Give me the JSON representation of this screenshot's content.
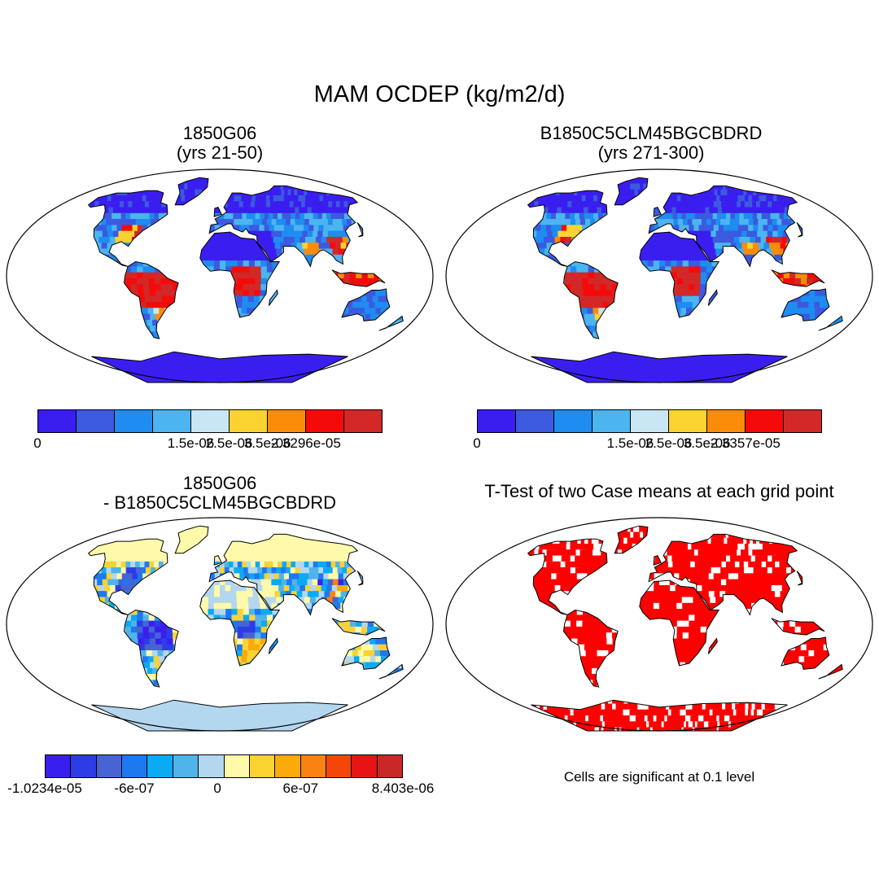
{
  "title": "MAM OCDEP (kg/m2/d)",
  "panels": [
    {
      "id": "case1",
      "title_line1": "1850G06",
      "title_line2": "(yrs 21-50)",
      "scheme": "seq",
      "variant": 0,
      "colorbar": {
        "colors": [
          "#3a1ef0",
          "#3b5ae0",
          "#1e8cf0",
          "#4cb4f0",
          "#c8e6f4",
          "#fad232",
          "#fa8c0a",
          "#f50a0a",
          "#d22828"
        ],
        "labels": [
          "0",
          "1.5e-06",
          "2.5e-06",
          "3.5e-06",
          "2.3296e-05"
        ]
      }
    },
    {
      "id": "case2",
      "title_line1": "B1850C5CLM45BGCBDRD",
      "title_line2": "(yrs 271-300)",
      "scheme": "seq",
      "variant": 1,
      "colorbar": {
        "colors": [
          "#3a1ef0",
          "#3b5ae0",
          "#1e8cf0",
          "#4cb4f0",
          "#c8e6f4",
          "#fad232",
          "#fa8c0a",
          "#f50a0a",
          "#d22828"
        ],
        "labels": [
          "0",
          "1.5e-06",
          "2.5e-06",
          "3.5e-06",
          "2.3357e-05"
        ]
      }
    },
    {
      "id": "diff",
      "title_line1": "1850G06",
      "title_line2": "- B1850C5CLM45BGCBDRD",
      "scheme": "div",
      "variant": 2,
      "colorbar": {
        "colors": [
          "#3a1ef0",
          "#2d3ce6",
          "#4664d2",
          "#1e78f0",
          "#0aaaf5",
          "#50b4eb",
          "#b4d7f0",
          "#fffaaa",
          "#fad232",
          "#faaa0a",
          "#fa8214",
          "#f5460a",
          "#e61414",
          "#c82828"
        ],
        "labels": [
          "-1.0234e-05",
          "-6e-07",
          "0",
          "6e-07",
          "8.403e-06"
        ]
      }
    },
    {
      "id": "ttest",
      "title_line1": "T-Test of two Case means at each grid point",
      "title_line2": "",
      "scheme": "sig",
      "variant": 3,
      "note": "Cells are significant at 0.1 level"
    }
  ]
}
